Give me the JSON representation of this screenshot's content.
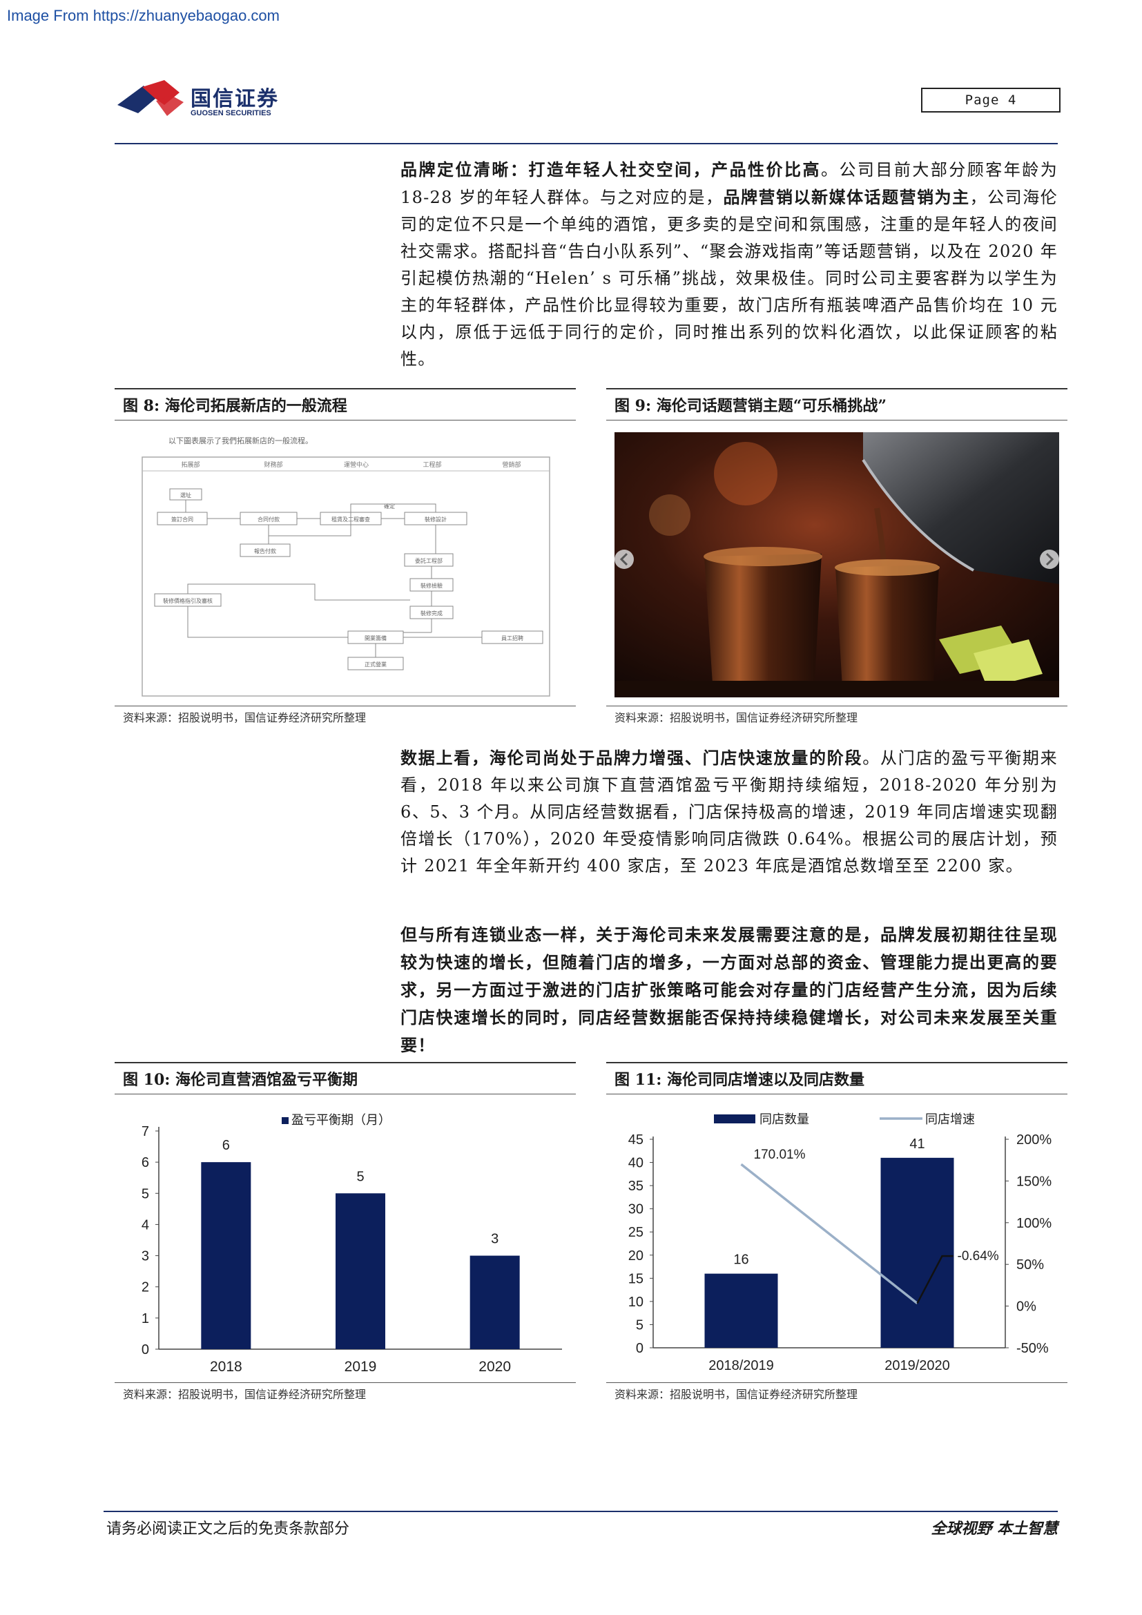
{
  "watermark": "Image From https://zhuanyebaogao.com",
  "header": {
    "logo_cn": "国信证券",
    "logo_en": "GUOSEN SECURITIES",
    "page_label": "Page  4"
  },
  "para1": {
    "bold1": "品牌定位清晰：打造年轻人社交空间，产品性价比高",
    "text1": "。公司目前大部分顾客年龄为 18-28 岁的年轻人群体。与之对应的是，",
    "bold2": "品牌营销以新媒体话题营销为主",
    "text2": "，公司海伦司的定位不只是一个单纯的酒馆，更多卖的是空间和氛围感，注重的是年轻人的夜间社交需求。搭配抖音“告白小队系列”、“聚会游戏指南”等话题营销，以及在 2020 年引起模仿热潮的“Helen’ s 可乐桶”挑战，效果极佳。同时公司主要客群为以学生为主的年轻群体，产品性价比显得较为重要，故门店所有瓶装啤酒产品售价均在 10 元以内，原低于远低于同行的定价，同时推出系列的饮料化酒饮，以此保证顾客的粘性。"
  },
  "fig8": {
    "title": "图 8:  海伦司拓展新店的一般流程",
    "source": "资料来源：招股说明书，国信证券经济研究所整理",
    "intro": "以下圖表展示了我們拓展新店的一般流程。",
    "columns": [
      "拓展部",
      "财務部",
      "運營中心",
      "工程部",
      "營銷部"
    ],
    "boxes": [
      "選址",
      "簽訂合同",
      "合同付款",
      "租賃及工程審查",
      "裝修設計",
      "報告付款",
      "確定",
      "委託工程部",
      "裝修檢驗",
      "裝修完成",
      "裝修價格指引及審核",
      "開業籌備",
      "員工招聘",
      "正式營業"
    ]
  },
  "fig9": {
    "title": "图 9:  海伦司话题营销主题“可乐桶挑战”",
    "source": "资料来源：招股说明书，国信证券经济研究所整理"
  },
  "para2": {
    "bold1": "数据上看，海伦司尚处于品牌力增强、门店快速放量的阶段",
    "text1": "。从门店的盈亏平衡期来看，2018 年以来公司旗下直营酒馆盈亏平衡期持续缩短，2018-2020 年分别为 6、5、3 个月。从同店经营数据看，门店保持极高的增速，2019 年同店增速实现翻倍增长（170%），2020 年受疫情影响同店微跌 0.64%。根据公司的展店计划，预计 2021 年全年新开约 400 家店，至 2023 年底是酒馆总数增至至 2200 家。"
  },
  "para3": {
    "bold": "但与所有连锁业态一样，关于海伦司未来发展需要注意的是，品牌发展初期往往呈现较为快速的增长，但随着门店的增多，一方面对总部的资金、管理能力提出更高的要求，另一方面过于激进的门店扩张策略可能会对存量的门店经营产生分流，因为后续门店快速增长的同时，同店经营数据能否保持持续稳健增长，对公司未来发展至关重要！"
  },
  "fig10": {
    "title": "图 10:  海伦司直营酒馆盈亏平衡期",
    "source": "资料来源：招股说明书，国信证券经济研究所整理"
  },
  "fig11": {
    "title": "图 11:  海伦司同店增速以及同店数量",
    "source": "资料来源：招股说明书，国信证券经济研究所整理"
  },
  "footer": {
    "left": "请务必阅读正文之后的免责条款部分",
    "right": "全球视野   本土智慧"
  },
  "colors": {
    "navy": "#0c1f5c",
    "line_blue": "#9bb0c8",
    "line_dark": "#111111",
    "brand_red": "#d2232a"
  },
  "chart_data": [
    {
      "type": "bar",
      "categories": [
        "2018",
        "2019",
        "2020"
      ],
      "series": [
        {
          "name": "盈亏平衡期（月）",
          "values": [
            6,
            5,
            3
          ]
        }
      ],
      "ylim": [
        0,
        7
      ],
      "yticks": [
        "0",
        "1",
        "2",
        "3",
        "4",
        "5",
        "6",
        "7"
      ],
      "data_labels": [
        "6",
        "5",
        "3"
      ],
      "legend": "top-center",
      "grid": false
    },
    {
      "type": "bar",
      "categories": [
        "2018/2019",
        "2019/2020"
      ],
      "series": [
        {
          "name": "同店数量",
          "type": "bar",
          "axis": "left",
          "values": [
            16,
            41
          ]
        },
        {
          "name": "同店增速",
          "type": "line",
          "axis": "right",
          "values": [
            170.01,
            -0.64
          ]
        }
      ],
      "ylim_left": [
        0,
        45
      ],
      "ylim_right": [
        -50,
        200
      ],
      "yticks_left": [
        "0",
        "5",
        "10",
        "15",
        "20",
        "25",
        "30",
        "35",
        "40",
        "45"
      ],
      "yticks_right": [
        "-50%",
        "0%",
        "50%",
        "100%",
        "150%",
        "200%"
      ],
      "bar_labels": [
        "16",
        "41"
      ],
      "line_labels": [
        "170.01%",
        "-0.64%"
      ],
      "legend": "top-center",
      "grid": false
    }
  ]
}
